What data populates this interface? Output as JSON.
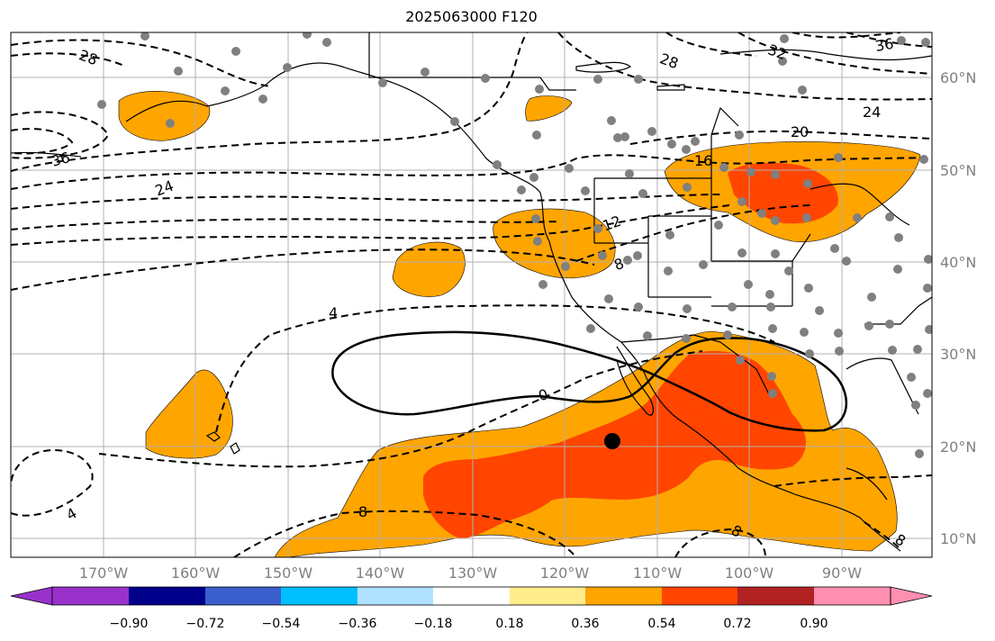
{
  "title": "2025063000 F120",
  "map": {
    "lat_labels": [
      "60°N",
      "50°N",
      "40°N",
      "30°N",
      "20°N",
      "10°N"
    ],
    "lon_labels": [
      "170°W",
      "160°W",
      "150°W",
      "140°W",
      "130°W",
      "120°W",
      "110°W",
      "100°W",
      "90°W"
    ],
    "contour_labels": [
      "28",
      "28",
      "32",
      "36",
      "24",
      "20",
      "16",
      "36",
      "24",
      "12",
      "8",
      "4",
      "0",
      "4",
      "8",
      "8",
      "8"
    ],
    "colors": {
      "fill_036_054": "#ffa500",
      "fill_054_072": "#ff4500",
      "station_dot": "#808080",
      "grid": "#b0b0b0"
    }
  },
  "colorbar": {
    "tick_labels": [
      "−0.90",
      "−0.72",
      "−0.54",
      "−0.36",
      "−0.18",
      "0.18",
      "0.36",
      "0.54",
      "0.72",
      "0.90"
    ],
    "colors": [
      "#9932cc",
      "#00008b",
      "#3a5fcd",
      "#00bfff",
      "#b0e2ff",
      "#ffffff",
      "#ffec8b",
      "#ffa500",
      "#ff4500",
      "#b22222",
      "#ff8fb0"
    ]
  }
}
